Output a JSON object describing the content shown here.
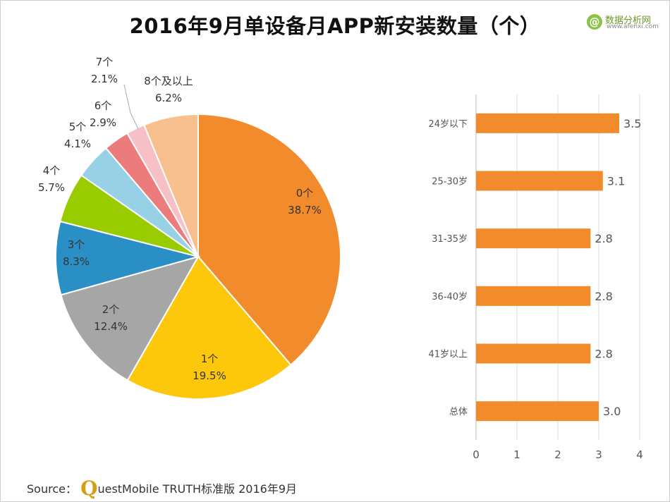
{
  "title": "2016年9月单设备月APP新安装数量（个）",
  "watermark": {
    "name": "数据分析网",
    "url": "www.afenxi.com",
    "icon": "at-sign-icon"
  },
  "source": {
    "prefix": "Source：",
    "q_letter": "Q",
    "text": "uestMobile TRUTH标准版 2016年9月"
  },
  "colors": {
    "bar": "#f28b2c",
    "axis": "#bbbbbb",
    "grid": "#dddddd",
    "label": "#555555"
  },
  "chart_data": [
    {
      "type": "pie",
      "slices": [
        {
          "label": "0个",
          "percent_text": "38.7%",
          "value": 38.7,
          "color": "#f28b2c"
        },
        {
          "label": "1个",
          "percent_text": "19.5%",
          "value": 19.5,
          "color": "#fdc70c"
        },
        {
          "label": "2个",
          "percent_text": "12.4%",
          "value": 12.4,
          "color": "#a6a6a6"
        },
        {
          "label": "3个",
          "percent_text": "8.3%",
          "value": 8.3,
          "color": "#2a8fc4"
        },
        {
          "label": "4个",
          "percent_text": "5.7%",
          "value": 5.7,
          "color": "#99cc00"
        },
        {
          "label": "5个",
          "percent_text": "4.1%",
          "value": 4.1,
          "color": "#98d0e6"
        },
        {
          "label": "6个",
          "percent_text": "2.9%",
          "value": 2.9,
          "color": "#ec7c7c"
        },
        {
          "label": "7个",
          "percent_text": "2.1%",
          "value": 2.1,
          "color": "#f6c0c6"
        },
        {
          "label": "8个及以上",
          "percent_text": "6.2%",
          "value": 6.2,
          "color": "#f8c08e"
        }
      ]
    },
    {
      "type": "bar",
      "orientation": "horizontal",
      "categories": [
        "24岁以下",
        "25-30岁",
        "31-35岁",
        "36-40岁",
        "41岁以上",
        "总体"
      ],
      "values": [
        3.5,
        3.1,
        2.8,
        2.8,
        2.8,
        3.0
      ],
      "value_labels": [
        "3.5",
        "3.1",
        "2.8",
        "2.8",
        "2.8",
        "3.0"
      ],
      "xlim": [
        0,
        4
      ],
      "xticks": [
        "0",
        "1",
        "2",
        "3",
        "4"
      ],
      "grid": true
    }
  ]
}
